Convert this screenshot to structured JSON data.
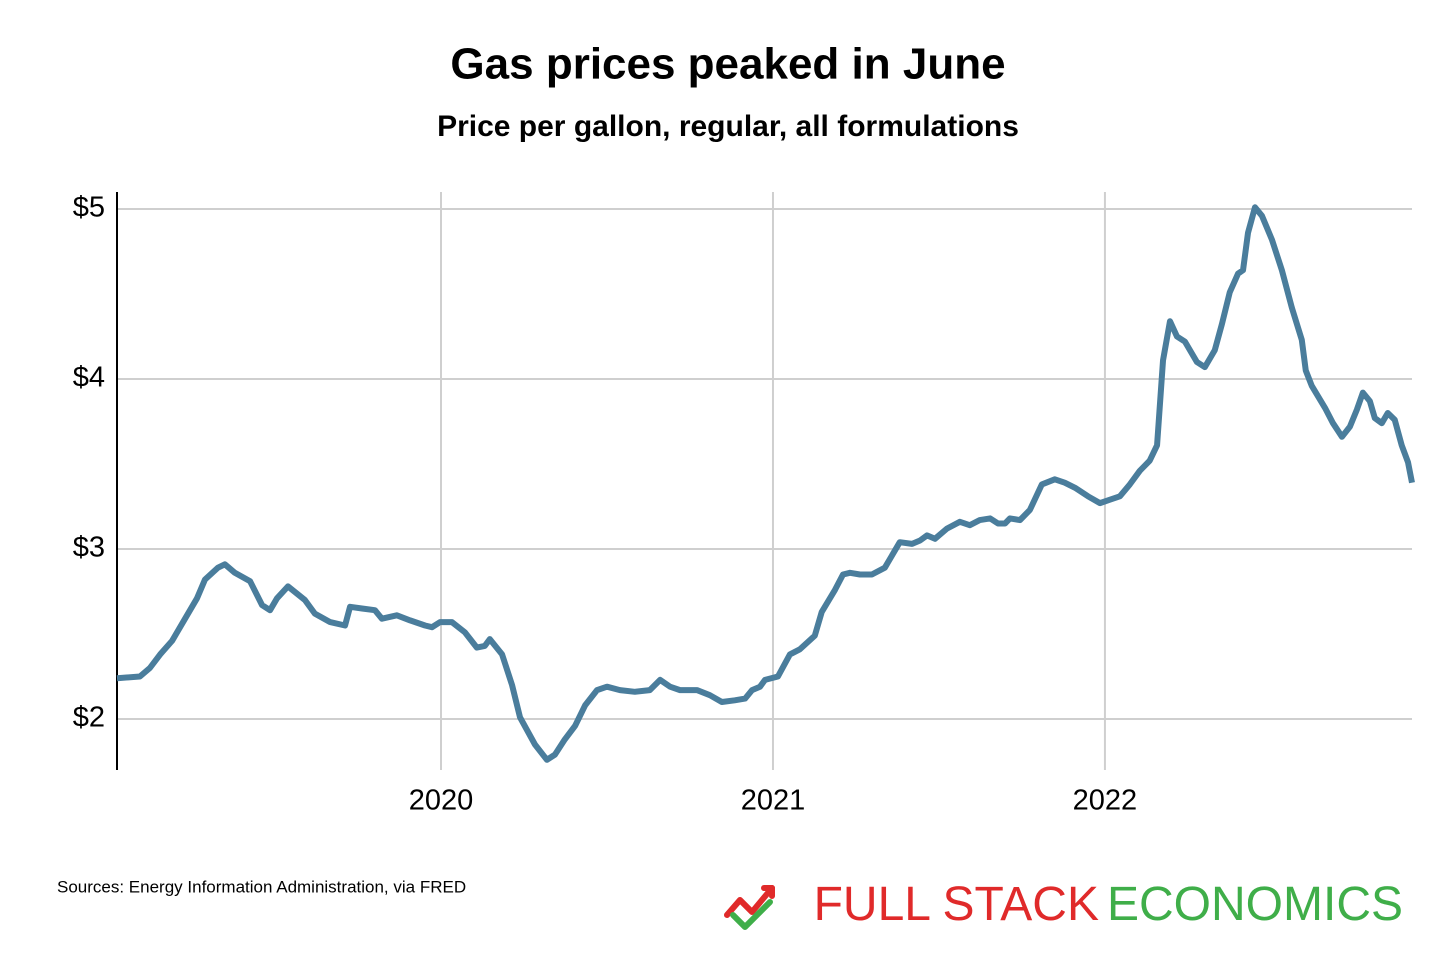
{
  "chart_data": {
    "type": "line",
    "title": "Gas prices peaked in June",
    "subtitle": "Price per gallon, regular, all formulations",
    "source": "Sources: Energy Information Administration, via FRED",
    "logo": [
      "FULL STACK",
      "ECONOMICS"
    ],
    "grid": true,
    "xlim": [
      2019.024,
      2022.925
    ],
    "ylim": [
      1.7,
      5.1
    ],
    "xticks": [
      2020,
      2021,
      2022
    ],
    "yticks": [
      {
        "value": 2,
        "label": "$2"
      },
      {
        "value": 3,
        "label": "$3"
      },
      {
        "value": 4,
        "label": "$4"
      },
      {
        "value": 5,
        "label": "$5"
      }
    ],
    "x": [
      2019.024,
      2019.093,
      2019.123,
      2019.154,
      2019.19,
      2019.229,
      2019.265,
      2019.289,
      2019.328,
      2019.349,
      2019.379,
      2019.425,
      2019.461,
      2019.485,
      2019.506,
      2019.539,
      2019.59,
      2019.62,
      2019.666,
      2019.711,
      2019.726,
      2019.762,
      2019.801,
      2019.822,
      2019.867,
      2019.907,
      2019.952,
      2019.973,
      2019.997,
      2020.033,
      2020.072,
      2020.108,
      2020.132,
      2020.147,
      2020.184,
      2020.214,
      2020.238,
      2020.283,
      2020.319,
      2020.343,
      2020.373,
      2020.404,
      2020.434,
      2020.47,
      2020.5,
      2020.539,
      2020.584,
      2020.629,
      2020.66,
      2020.69,
      2020.72,
      2020.771,
      2020.81,
      2020.846,
      2020.885,
      2020.916,
      2020.937,
      2020.961,
      2020.976,
      2021.015,
      2021.051,
      2021.081,
      2021.126,
      2021.147,
      2021.187,
      2021.211,
      2021.232,
      2021.262,
      2021.298,
      2021.337,
      2021.382,
      2021.419,
      2021.443,
      2021.464,
      2021.488,
      2021.524,
      2021.563,
      2021.593,
      2021.623,
      2021.654,
      2021.678,
      2021.699,
      2021.714,
      2021.744,
      2021.774,
      2021.81,
      2021.849,
      2021.879,
      2021.91,
      2021.949,
      2021.985,
      2022.015,
      2022.045,
      2022.075,
      2022.105,
      2022.135,
      2022.157,
      2022.175,
      2022.196,
      2022.217,
      2022.241,
      2022.277,
      2022.301,
      2022.331,
      2022.352,
      2022.376,
      2022.401,
      2022.416,
      2022.431,
      2022.452,
      2022.473,
      2022.503,
      2022.533,
      2022.563,
      2022.593,
      2022.605,
      2022.623,
      2022.663,
      2022.687,
      2022.714,
      2022.738,
      2022.759,
      2022.777,
      2022.798,
      2022.813,
      2022.834,
      2022.852,
      2022.873,
      2022.894,
      2022.913,
      2022.925
    ],
    "series": [
      {
        "name": "Price per gallon",
        "color": "#4a7d9c",
        "values": [
          2.24,
          2.25,
          2.3,
          2.38,
          2.46,
          2.59,
          2.71,
          2.82,
          2.89,
          2.91,
          2.86,
          2.81,
          2.67,
          2.64,
          2.71,
          2.78,
          2.7,
          2.62,
          2.57,
          2.55,
          2.66,
          2.65,
          2.64,
          2.59,
          2.61,
          2.58,
          2.55,
          2.54,
          2.57,
          2.57,
          2.51,
          2.42,
          2.43,
          2.47,
          2.38,
          2.2,
          2.01,
          1.85,
          1.76,
          1.79,
          1.88,
          1.96,
          2.08,
          2.17,
          2.19,
          2.17,
          2.16,
          2.17,
          2.23,
          2.19,
          2.17,
          2.17,
          2.14,
          2.1,
          2.11,
          2.12,
          2.17,
          2.19,
          2.23,
          2.25,
          2.38,
          2.41,
          2.49,
          2.63,
          2.76,
          2.85,
          2.86,
          2.85,
          2.85,
          2.89,
          3.04,
          3.03,
          3.05,
          3.08,
          3.06,
          3.12,
          3.16,
          3.14,
          3.17,
          3.18,
          3.15,
          3.15,
          3.18,
          3.17,
          3.23,
          3.38,
          3.41,
          3.39,
          3.36,
          3.31,
          3.27,
          3.29,
          3.31,
          3.38,
          3.46,
          3.52,
          3.61,
          4.11,
          4.34,
          4.25,
          4.22,
          4.1,
          4.07,
          4.17,
          4.32,
          4.51,
          4.62,
          4.64,
          4.86,
          5.01,
          4.96,
          4.82,
          4.64,
          4.42,
          4.23,
          4.05,
          3.96,
          3.83,
          3.74,
          3.66,
          3.72,
          3.82,
          3.92,
          3.87,
          3.77,
          3.74,
          3.8,
          3.76,
          3.61,
          3.51,
          3.39
        ]
      }
    ]
  }
}
